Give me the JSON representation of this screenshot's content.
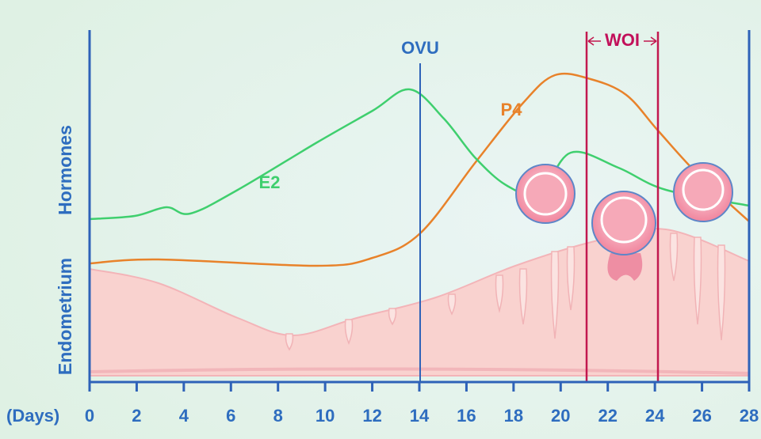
{
  "axis": {
    "unit_label": "(Days)",
    "ticks": [
      "0",
      "2",
      "4",
      "6",
      "8",
      "10",
      "12",
      "14",
      "16",
      "18",
      "20",
      "22",
      "24",
      "26",
      "28"
    ]
  },
  "side_labels": {
    "hormones": "Hormones",
    "endometrium": "Endometrium"
  },
  "curves": {
    "e2": "E2",
    "p4": "P4"
  },
  "markers": {
    "ovulation": "OVU",
    "window": "WOI"
  }
}
